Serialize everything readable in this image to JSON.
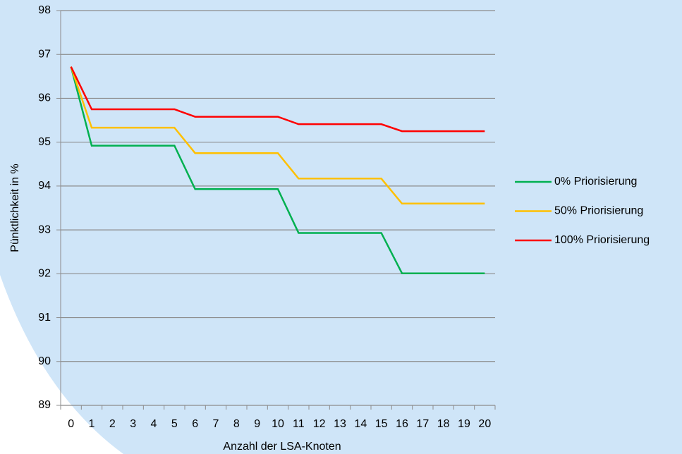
{
  "chart_data": {
    "type": "line",
    "xlabel": "Anzahl der LSA-Knoten",
    "ylabel": "Pünktlichkeit in %",
    "categories": [
      "0",
      "1",
      "2",
      "3",
      "4",
      "5",
      "6",
      "7",
      "8",
      "9",
      "10",
      "11",
      "12",
      "13",
      "14",
      "15",
      "16",
      "17",
      "18",
      "19",
      "20"
    ],
    "series": [
      {
        "name": "0% Priorisierung",
        "color": "#00b050",
        "values": [
          96.72,
          94.92,
          94.92,
          94.92,
          94.92,
          94.92,
          93.93,
          93.93,
          93.93,
          93.93,
          93.93,
          92.93,
          92.93,
          92.93,
          92.93,
          92.93,
          92.01,
          92.01,
          92.01,
          92.01,
          92.01
        ]
      },
      {
        "name": "50% Priorisierung",
        "color": "#ffc000",
        "values": [
          96.72,
          95.33,
          95.33,
          95.33,
          95.33,
          95.33,
          94.75,
          94.75,
          94.75,
          94.75,
          94.75,
          94.17,
          94.17,
          94.17,
          94.17,
          94.17,
          93.6,
          93.6,
          93.6,
          93.6,
          93.6
        ]
      },
      {
        "name": "100% Priorisierung",
        "color": "#ff0000",
        "values": [
          96.72,
          95.75,
          95.75,
          95.75,
          95.75,
          95.75,
          95.58,
          95.58,
          95.58,
          95.58,
          95.58,
          95.41,
          95.41,
          95.41,
          95.41,
          95.41,
          95.25,
          95.25,
          95.25,
          95.25,
          95.25
        ]
      }
    ],
    "ylim": [
      89,
      98
    ],
    "yticks": [
      89,
      90,
      91,
      92,
      93,
      94,
      95,
      96,
      97,
      98
    ],
    "grid": true,
    "legend": "right"
  }
}
